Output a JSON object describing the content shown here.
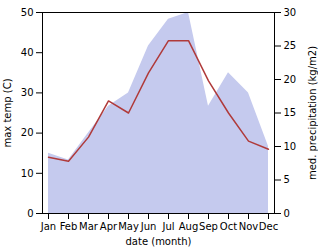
{
  "chart_data": {
    "type": "line",
    "xlabel": "date (month)",
    "ylabel": "max temp (C)",
    "y2label": "med. precipitation (kg/m2)",
    "categories": [
      "Jan",
      "Feb",
      "Mar",
      "Apr",
      "May",
      "Jun",
      "Jul",
      "Aug",
      "Sep",
      "Oct",
      "Nov",
      "Dec"
    ],
    "series": [
      {
        "type": "area",
        "axis": "y2",
        "color": "#c5caee",
        "values": [
          9,
          8,
          12,
          16,
          18,
          25,
          29,
          30,
          16,
          21,
          18,
          10
        ]
      },
      {
        "type": "line",
        "color": "#b03a3a",
        "values": [
          14,
          13,
          19,
          28,
          25,
          35,
          43,
          43,
          33,
          25,
          18,
          16
        ]
      }
    ],
    "ylim": [
      0,
      50
    ],
    "yticks": [
      0,
      10,
      20,
      30,
      40,
      50
    ],
    "y2lim": [
      0,
      30
    ],
    "y2ticks": [
      0,
      5,
      10,
      15,
      20,
      25,
      30
    ],
    "grid": false
  }
}
